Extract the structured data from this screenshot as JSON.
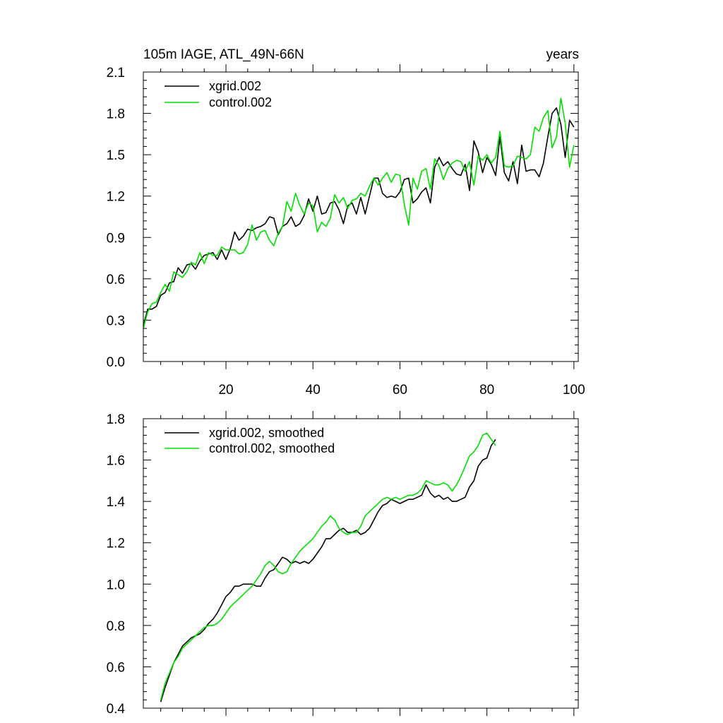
{
  "colors": {
    "xgrid": "#000000",
    "control": "#00e000",
    "axis": "#000000",
    "background": "#ffffff"
  },
  "chart_data": [
    {
      "type": "line",
      "title": "105m IAGE, ATL_49N-66N",
      "title_right": "years",
      "xlabel": "",
      "ylabel": "",
      "xlim": [
        1,
        101
      ],
      "ylim": [
        0.0,
        2.1
      ],
      "yticks": [
        "0.0",
        "0.3",
        "0.6",
        "0.9",
        "1.2",
        "1.5",
        "1.8",
        "2.1"
      ],
      "xticks": [
        "20",
        "40",
        "60",
        "80",
        "100"
      ],
      "legend_position": "top-left",
      "grid": false,
      "x_start": 1,
      "series": [
        {
          "name": "xgrid.002",
          "color_key": "xgrid",
          "values": [
            0.26,
            0.38,
            0.38,
            0.4,
            0.48,
            0.5,
            0.57,
            0.58,
            0.68,
            0.64,
            0.7,
            0.71,
            0.67,
            0.73,
            0.77,
            0.78,
            0.79,
            0.74,
            0.81,
            0.74,
            0.82,
            0.94,
            0.88,
            0.91,
            0.96,
            0.95,
            0.97,
            0.98,
            1.0,
            1.05,
            1.04,
            0.92,
            0.98,
            1.0,
            1.05,
            0.98,
            1.0,
            1.06,
            1.18,
            1.09,
            1.2,
            1.07,
            1.08,
            1.15,
            1.16,
            1.1,
            1.0,
            1.13,
            1.15,
            1.07,
            1.19,
            1.07,
            1.2,
            1.33,
            1.33,
            1.22,
            1.19,
            1.2,
            1.19,
            1.23,
            1.32,
            1.33,
            1.15,
            1.18,
            1.23,
            1.26,
            1.15,
            1.41,
            1.48,
            1.42,
            1.45,
            1.4,
            1.36,
            1.35,
            1.43,
            1.24,
            1.6,
            1.52,
            1.37,
            1.48,
            1.43,
            1.35,
            1.63,
            1.37,
            1.31,
            1.45,
            1.29,
            1.57,
            1.38,
            1.39,
            1.39,
            1.34,
            1.44,
            1.63,
            1.8,
            1.84,
            1.72,
            1.48,
            1.75,
            1.7
          ]
        },
        {
          "name": "control.002",
          "color_key": "control",
          "values": [
            0.24,
            0.36,
            0.42,
            0.43,
            0.5,
            0.56,
            0.51,
            0.65,
            0.63,
            0.61,
            0.65,
            0.72,
            0.7,
            0.79,
            0.71,
            0.79,
            0.77,
            0.77,
            0.83,
            0.81,
            0.81,
            0.81,
            0.78,
            0.79,
            0.85,
            0.99,
            0.88,
            0.94,
            0.95,
            0.88,
            0.84,
            0.93,
            0.98,
            1.16,
            1.09,
            1.22,
            1.13,
            1.07,
            1.15,
            1.13,
            0.94,
            1.01,
            0.98,
            1.04,
            1.21,
            1.15,
            1.19,
            1.11,
            1.17,
            1.18,
            1.22,
            1.2,
            1.27,
            1.33,
            1.28,
            1.33,
            1.37,
            1.3,
            1.36,
            1.35,
            1.14,
            0.99,
            1.33,
            1.25,
            1.38,
            1.4,
            1.25,
            1.47,
            1.42,
            1.32,
            1.4,
            1.44,
            1.46,
            1.45,
            1.38,
            1.45,
            1.28,
            1.49,
            1.46,
            1.5,
            1.44,
            1.48,
            1.67,
            1.42,
            1.41,
            1.42,
            1.49,
            1.48,
            1.47,
            1.5,
            1.7,
            1.67,
            1.77,
            1.82,
            1.55,
            1.63,
            1.91,
            1.73,
            1.41,
            1.57
          ]
        }
      ]
    },
    {
      "type": "line",
      "title": "",
      "xlabel": "",
      "ylabel": "",
      "xlim": [
        1,
        101
      ],
      "ylim": [
        0.4,
        1.8
      ],
      "yticks": [
        "0.4",
        "0.6",
        "0.8",
        "1.0",
        "1.2",
        "1.4",
        "1.6",
        "1.8"
      ],
      "legend_position": "top-left",
      "grid": false,
      "x_start": 5,
      "series": [
        {
          "name": "xgrid.002, smoothed",
          "color_key": "xgrid",
          "values": [
            0.43,
            0.5,
            0.56,
            0.62,
            0.66,
            0.7,
            0.72,
            0.74,
            0.75,
            0.76,
            0.78,
            0.81,
            0.83,
            0.86,
            0.9,
            0.94,
            0.96,
            0.99,
            0.99,
            1.0,
            1.0,
            1.0,
            0.99,
            0.99,
            1.03,
            1.06,
            1.07,
            1.1,
            1.13,
            1.12,
            1.1,
            1.11,
            1.1,
            1.11,
            1.1,
            1.12,
            1.15,
            1.18,
            1.22,
            1.22,
            1.24,
            1.26,
            1.27,
            1.25,
            1.25,
            1.26,
            1.24,
            1.25,
            1.27,
            1.31,
            1.35,
            1.38,
            1.39,
            1.41,
            1.4,
            1.39,
            1.4,
            1.41,
            1.41,
            1.42,
            1.43,
            1.48,
            1.44,
            1.42,
            1.43,
            1.41,
            1.42,
            1.4,
            1.4,
            1.41,
            1.42,
            1.47,
            1.5,
            1.57,
            1.6,
            1.61,
            1.67,
            1.7
          ]
        },
        {
          "name": "control.002, smoothed",
          "color_key": "control",
          "values": [
            0.44,
            0.52,
            0.57,
            0.62,
            0.65,
            0.69,
            0.71,
            0.73,
            0.75,
            0.77,
            0.79,
            0.8,
            0.8,
            0.81,
            0.83,
            0.86,
            0.89,
            0.91,
            0.93,
            0.95,
            0.97,
            0.99,
            1.02,
            1.05,
            1.09,
            1.11,
            1.09,
            1.06,
            1.05,
            1.06,
            1.1,
            1.13,
            1.16,
            1.18,
            1.2,
            1.22,
            1.25,
            1.28,
            1.3,
            1.33,
            1.31,
            1.27,
            1.25,
            1.24,
            1.25,
            1.25,
            1.28,
            1.33,
            1.35,
            1.37,
            1.39,
            1.41,
            1.42,
            1.41,
            1.42,
            1.41,
            1.42,
            1.43,
            1.43,
            1.44,
            1.46,
            1.5,
            1.49,
            1.48,
            1.48,
            1.49,
            1.48,
            1.45,
            1.48,
            1.52,
            1.57,
            1.62,
            1.64,
            1.67,
            1.72,
            1.73,
            1.7,
            1.67
          ]
        }
      ]
    }
  ]
}
